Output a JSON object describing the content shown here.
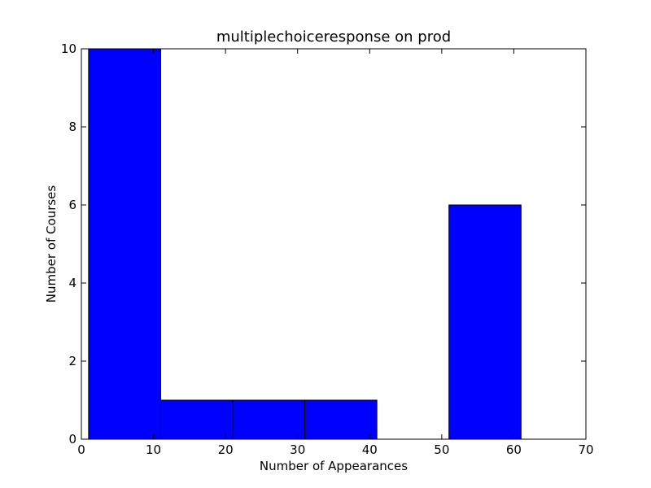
{
  "chart_data": {
    "type": "bar",
    "title": "multiplechoiceresponse on prod",
    "xlabel": "Number of Appearances",
    "ylabel": "Number of Courses",
    "xlim": [
      0,
      70
    ],
    "ylim": [
      0,
      10
    ],
    "x_ticks": [
      0,
      10,
      20,
      30,
      40,
      50,
      60,
      70
    ],
    "y_ticks": [
      0,
      2,
      4,
      6,
      8,
      10
    ],
    "grid": false,
    "bin_edges": [
      1,
      11,
      21,
      31,
      41,
      51,
      61
    ],
    "values": [
      10,
      1,
      1,
      1,
      0,
      6
    ],
    "bar_color": "#0000ff",
    "edge_color": "#000000"
  }
}
